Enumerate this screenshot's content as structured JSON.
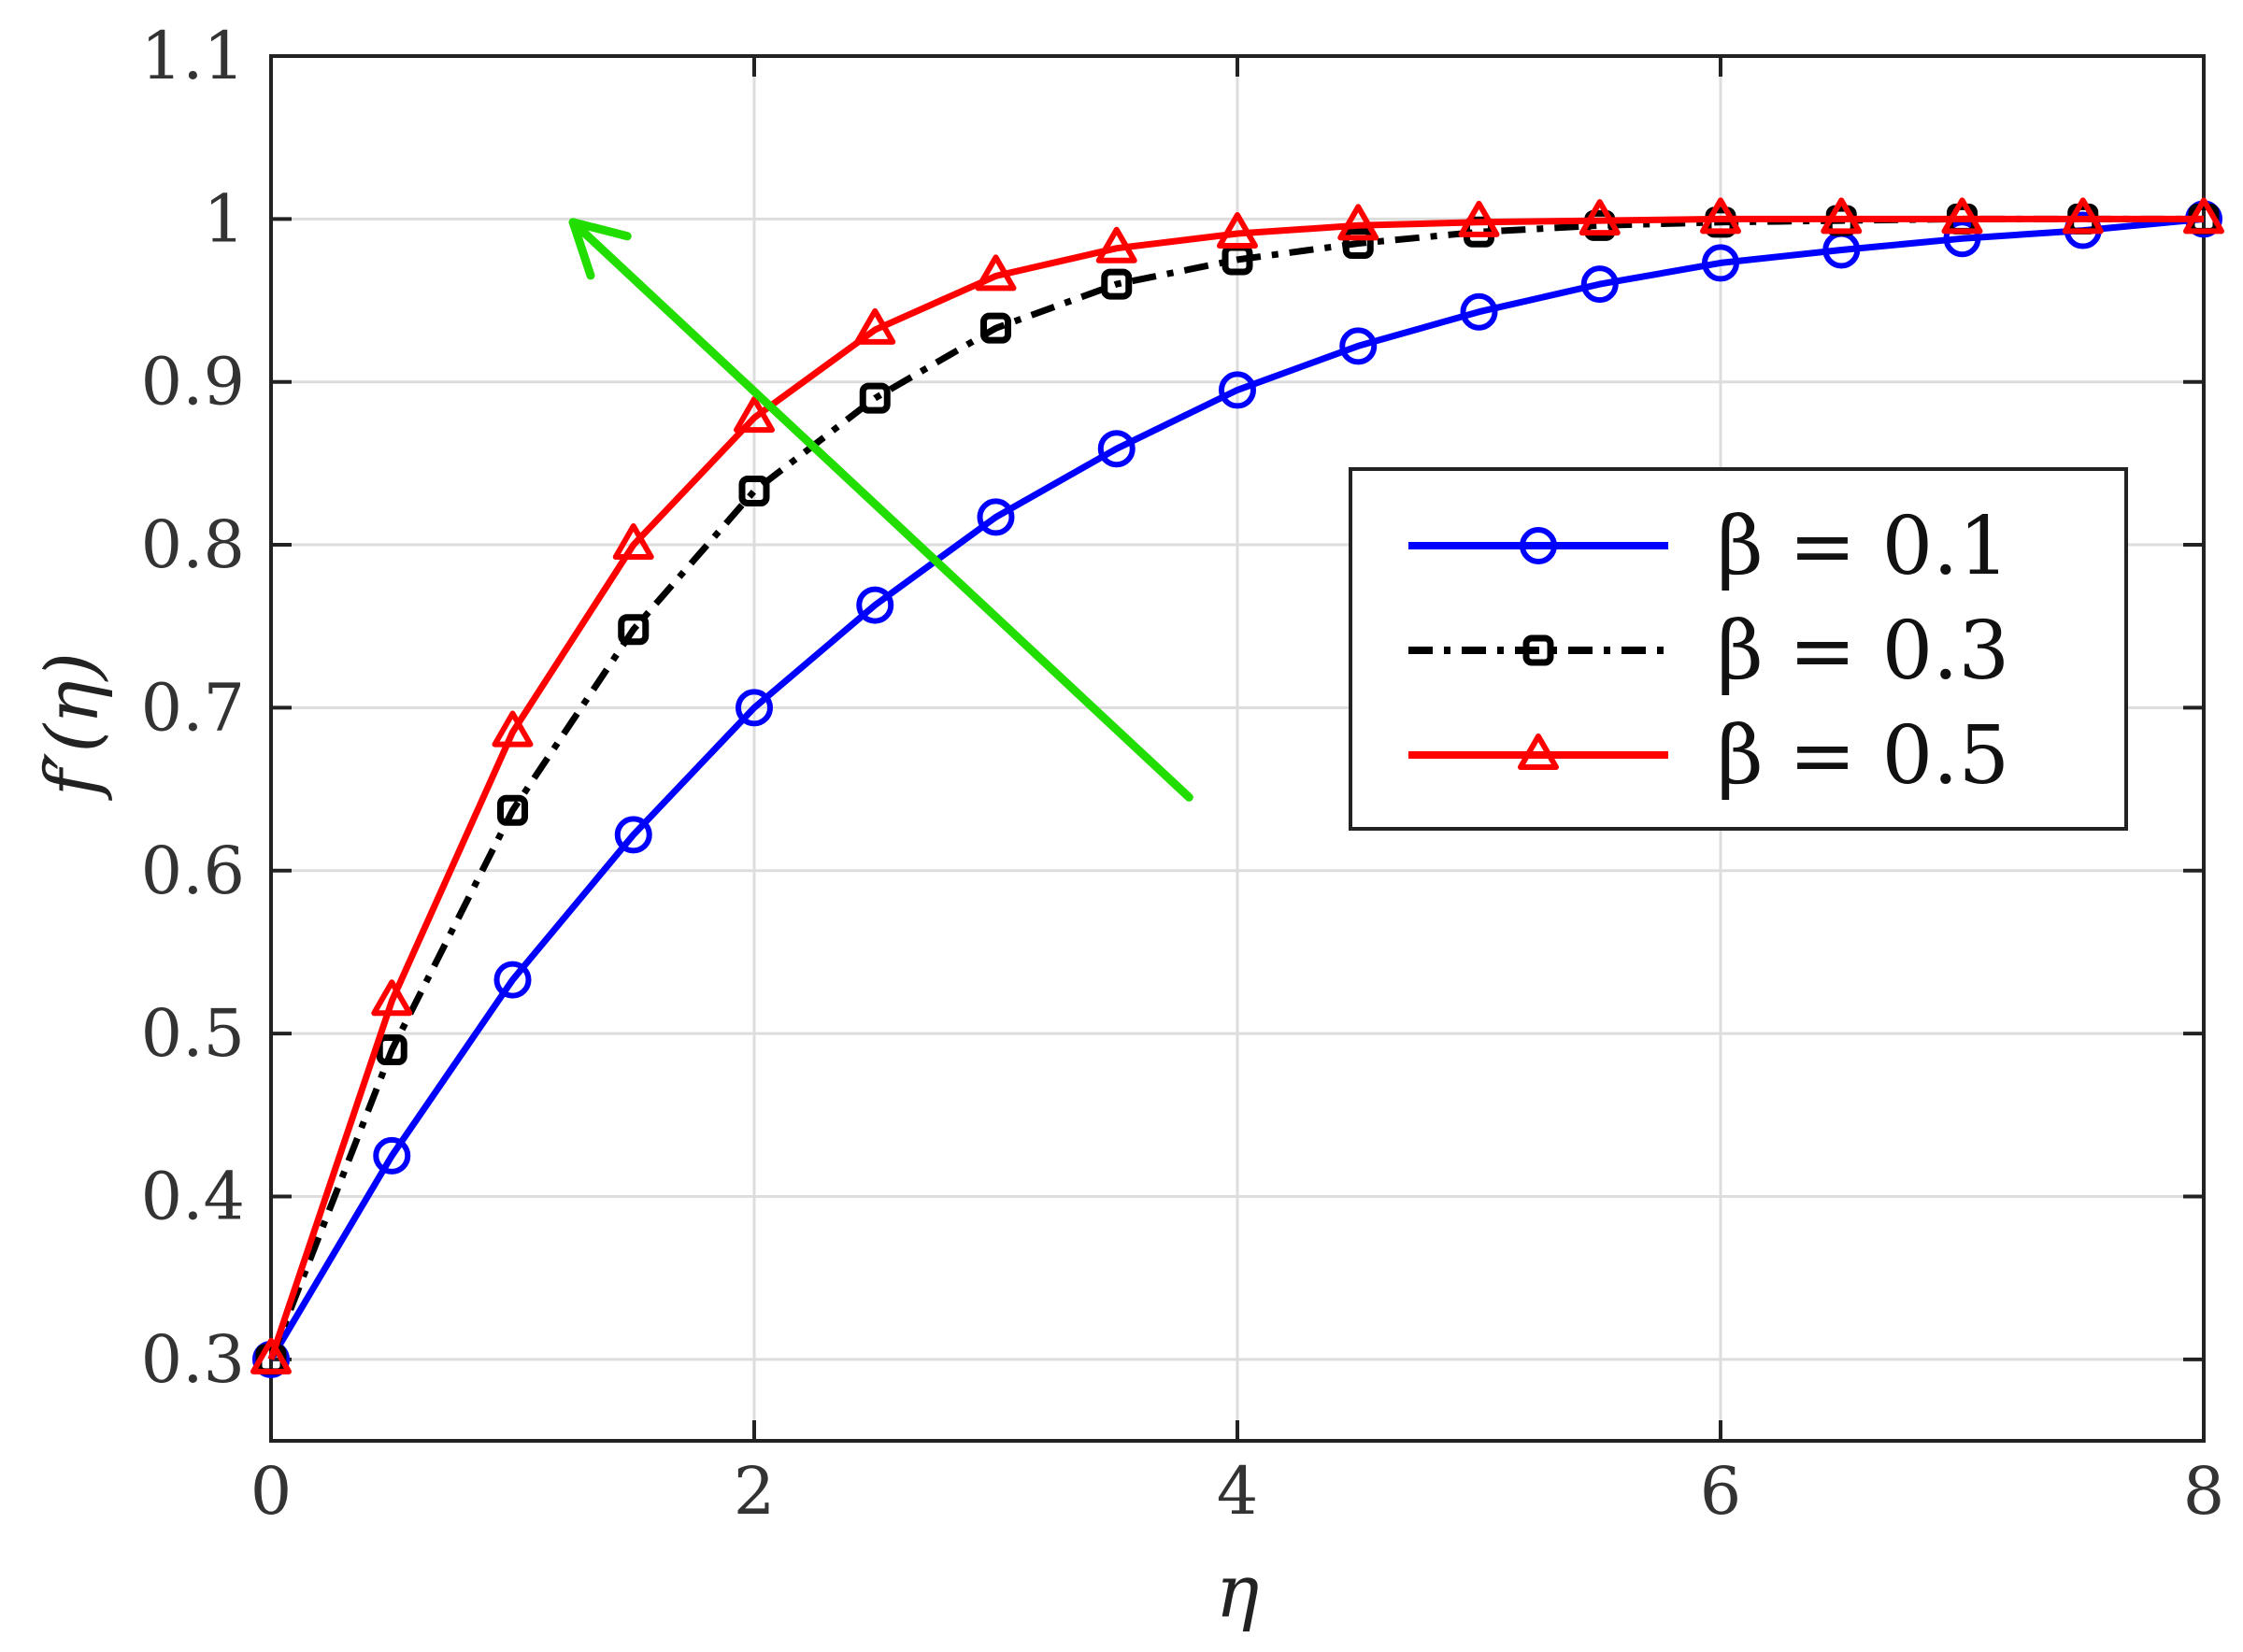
{
  "chart_data": {
    "type": "line",
    "title": "",
    "xlabel": "η",
    "ylabel": "f′(η)",
    "xlim": [
      0,
      8
    ],
    "ylim": [
      0.25,
      1.1
    ],
    "xticks": [
      "0",
      "2",
      "4",
      "6",
      "8"
    ],
    "yticks": [
      "0.3",
      "0.4",
      "0.5",
      "0.6",
      "0.7",
      "0.8",
      "0.9",
      "1",
      "1.1"
    ],
    "grid": true,
    "legend_position": "right",
    "x": [
      0,
      0.5,
      1,
      1.5,
      2,
      2.5,
      3,
      3.5,
      4,
      4.5,
      5,
      5.5,
      6,
      6.5,
      7,
      7.5,
      8
    ],
    "series": [
      {
        "name": "β = 0.1",
        "color": "#0000ff",
        "line_style": "solid",
        "marker": "circle",
        "values": [
          0.3,
          0.425,
          0.533,
          0.622,
          0.7,
          0.763,
          0.817,
          0.859,
          0.895,
          0.922,
          0.943,
          0.96,
          0.973,
          0.981,
          0.988,
          0.993,
          1.0
        ]
      },
      {
        "name": "β = 0.3",
        "color": "#000000",
        "line_style": "dashdot",
        "marker": "square",
        "values": [
          0.3,
          0.49,
          0.637,
          0.748,
          0.833,
          0.89,
          0.933,
          0.96,
          0.975,
          0.985,
          0.992,
          0.996,
          0.998,
          0.999,
          1.0,
          1.0,
          1.0
        ]
      },
      {
        "name": "β = 0.5",
        "color": "#ff0000",
        "line_style": "solid",
        "marker": "triangle",
        "values": [
          0.3,
          0.52,
          0.685,
          0.8,
          0.878,
          0.932,
          0.965,
          0.982,
          0.991,
          0.996,
          0.998,
          0.999,
          1.0,
          1.0,
          1.0,
          1.0,
          1.0
        ]
      }
    ],
    "annotations": [
      {
        "type": "arrow",
        "color": "#22dd00",
        "from": [
          3.8,
          0.645
        ],
        "to": [
          1.25,
          0.998
        ]
      }
    ]
  }
}
